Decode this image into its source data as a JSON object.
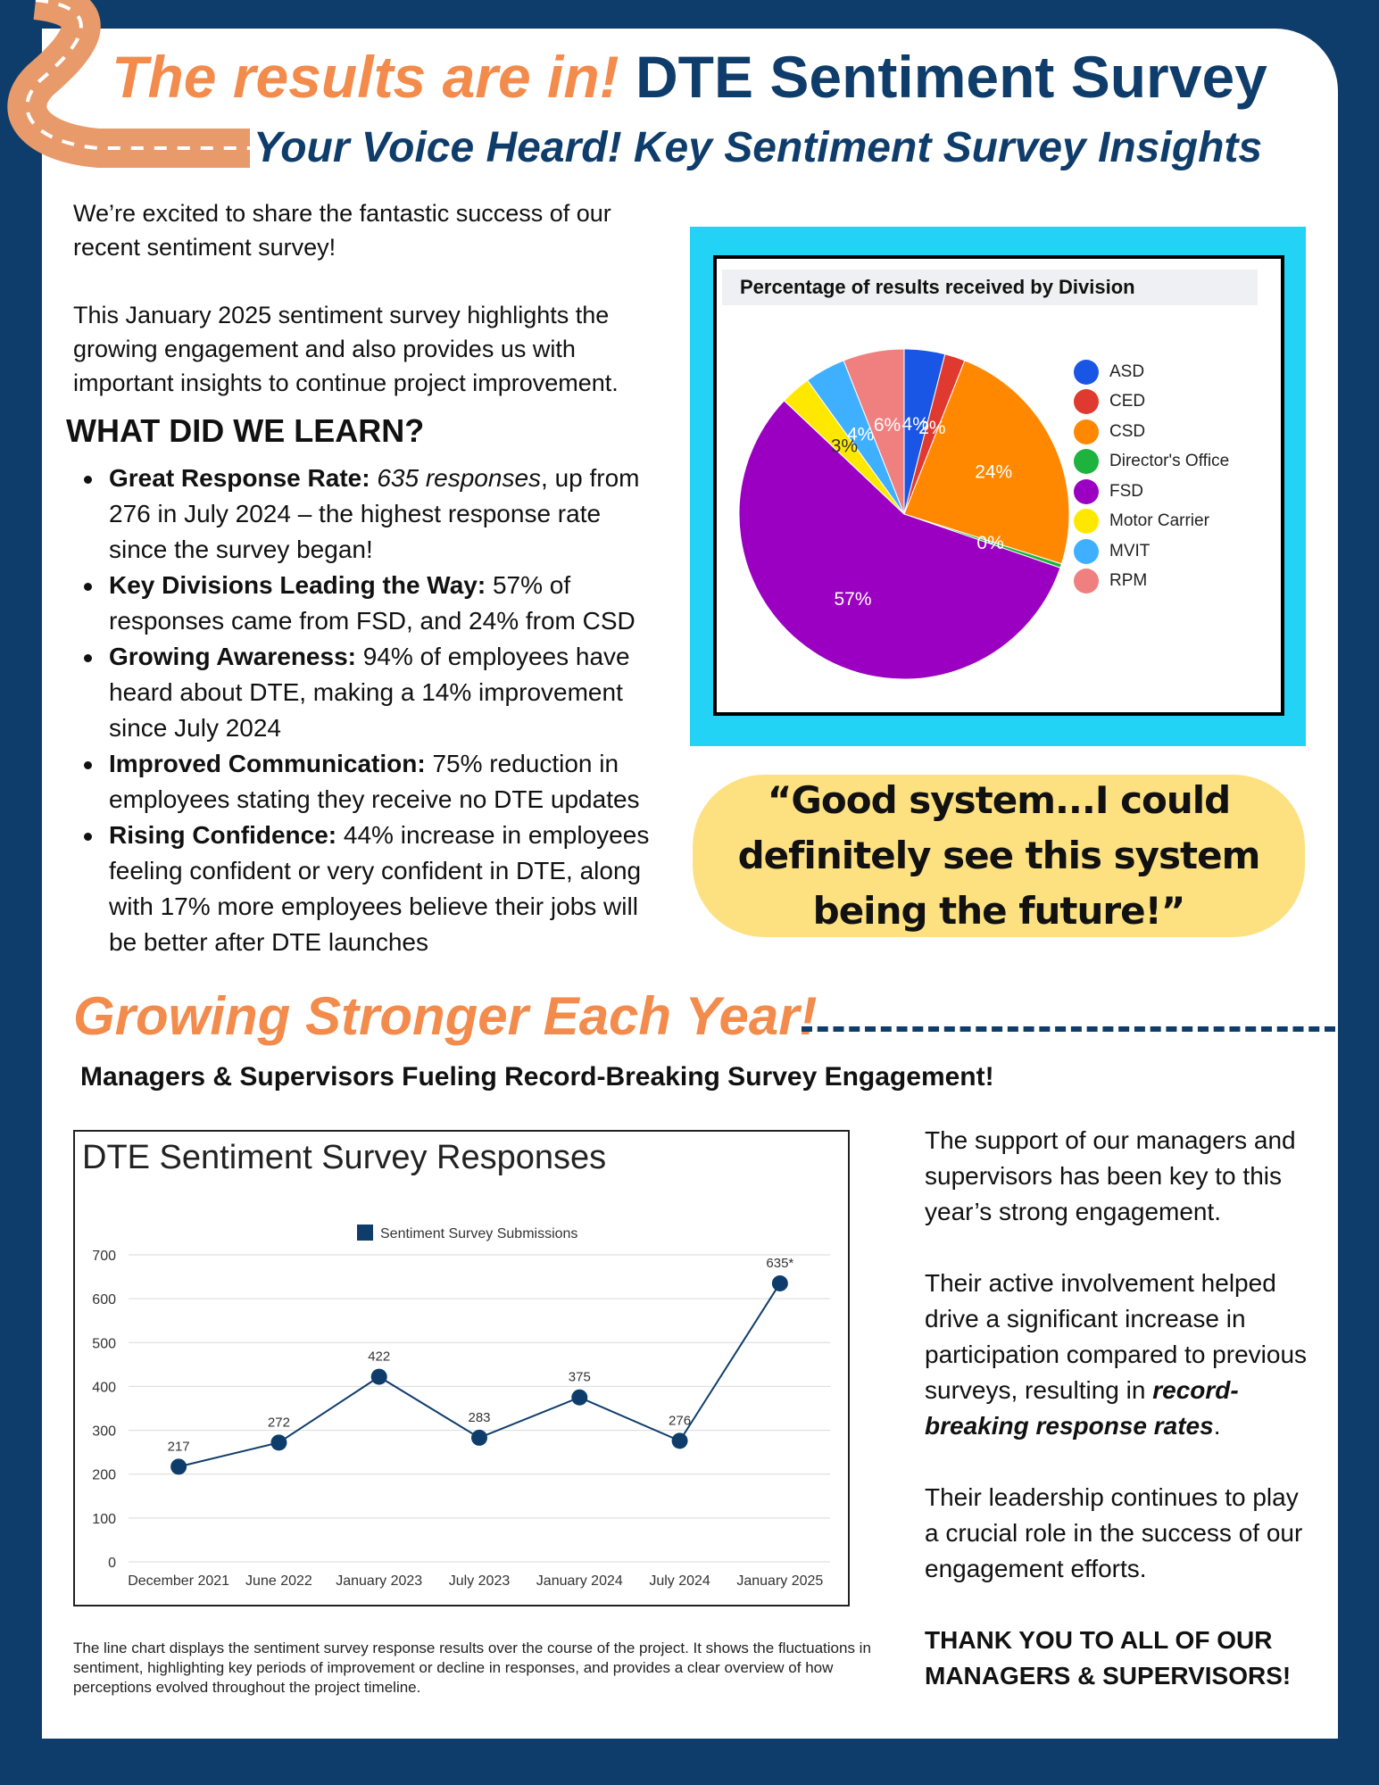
{
  "header": {
    "title_accent": "The results are in!",
    "title_main": "DTE Sentiment Survey",
    "subtitle": "Your Voice Heard! Key Sentiment Survey Insights"
  },
  "intro": {
    "p1": "We’re excited to share the fantastic success of our recent sentiment survey!",
    "p2": "This January 2025 sentiment survey highlights the growing engagement and also provides us with important insights to continue project improvement."
  },
  "learn": {
    "heading": "WHAT DID WE LEARN?",
    "items": [
      {
        "label": "Great Response Rate:",
        "italic": "635 responses",
        "text": ", up from 276 in July 2024 – the highest response rate since the survey began!"
      },
      {
        "label": "Key Divisions Leading the Way:",
        "italic": "",
        "text": "57% of responses came from FSD, and 24% from CSD"
      },
      {
        "label": "Growing Awareness:",
        "italic": "",
        "text": "94% of employees have heard about DTE, making a 14% improvement since July 2024"
      },
      {
        "label": "Improved Communication:",
        "italic": "",
        "text": "75% reduction in employees stating they receive no DTE updates"
      },
      {
        "label": "Rising Confidence:",
        "italic": "",
        "text": "44% increase in employees feeling confident or very confident in DTE, along with 17% more employees believe their jobs will be better after DTE launches"
      }
    ]
  },
  "quote": "“Good system...I could definitely see this system being the future!”",
  "growing": {
    "heading": "Growing Stronger Each Year!",
    "subheading": "Managers & Supervisors Fueling Record-Breaking Survey Engagement!"
  },
  "side_text": {
    "p1": "The support of our managers and supervisors has been key to this year’s strong engagement.",
    "p2_a": "Their active involvement helped drive a significant increase in participation compared to previous surveys, resulting in ",
    "p2_em": "record-breaking response rates",
    "p2_b": ".",
    "p3": "Their leadership continues to play a crucial role in the success of our engagement efforts.",
    "p4": "THANK YOU TO ALL OF OUR MANAGERS & SUPERVISORS!"
  },
  "caption": "The line chart displays the sentiment survey response results over the course of the project. It shows the fluctuations in sentiment, highlighting key periods of improvement or decline in responses, and provides a clear overview of how perceptions evolved throughout the project timeline.",
  "colors": {
    "navy": "#0f3d6b",
    "orange": "#f28b4b",
    "cyan": "#22d3f5",
    "yellow": "#fde181"
  },
  "chart_data": [
    {
      "type": "pie",
      "title": "Percentage of results received by Division",
      "categories": [
        "ASD",
        "CED",
        "CSD",
        "Director's Office",
        "FSD",
        "Motor Carrier",
        "MVIT",
        "RPM"
      ],
      "values": [
        4,
        2,
        24,
        0.4,
        57,
        3,
        4,
        6
      ],
      "labels": [
        "4%",
        "2%",
        "24%",
        "0%",
        "57%",
        "3%",
        "4%",
        "6%"
      ],
      "colors": [
        "#1a56e6",
        "#e03a30",
        "#ff8800",
        "#1db33d",
        "#9b00c2",
        "#ffe800",
        "#3fb0ff",
        "#f08080"
      ],
      "legend": "right"
    },
    {
      "type": "line",
      "title": "DTE Sentiment Survey Responses",
      "categories": [
        "December 2021",
        "June 2022",
        "January 2023",
        "July 2023",
        "January 2024",
        "July 2024",
        "January 2025"
      ],
      "series": [
        {
          "name": "Sentiment Survey Submissions",
          "values": [
            217,
            272,
            422,
            283,
            375,
            276,
            635
          ],
          "labels": [
            "217",
            "272",
            "422",
            "283",
            "375",
            "276",
            "635*"
          ]
        }
      ],
      "ylim": [
        0,
        700
      ],
      "yticks": [
        "0",
        "100",
        "200",
        "300",
        "400",
        "500",
        "600",
        "700"
      ],
      "grid": true,
      "legend": "top-center",
      "color": "#0f3d6b"
    }
  ]
}
